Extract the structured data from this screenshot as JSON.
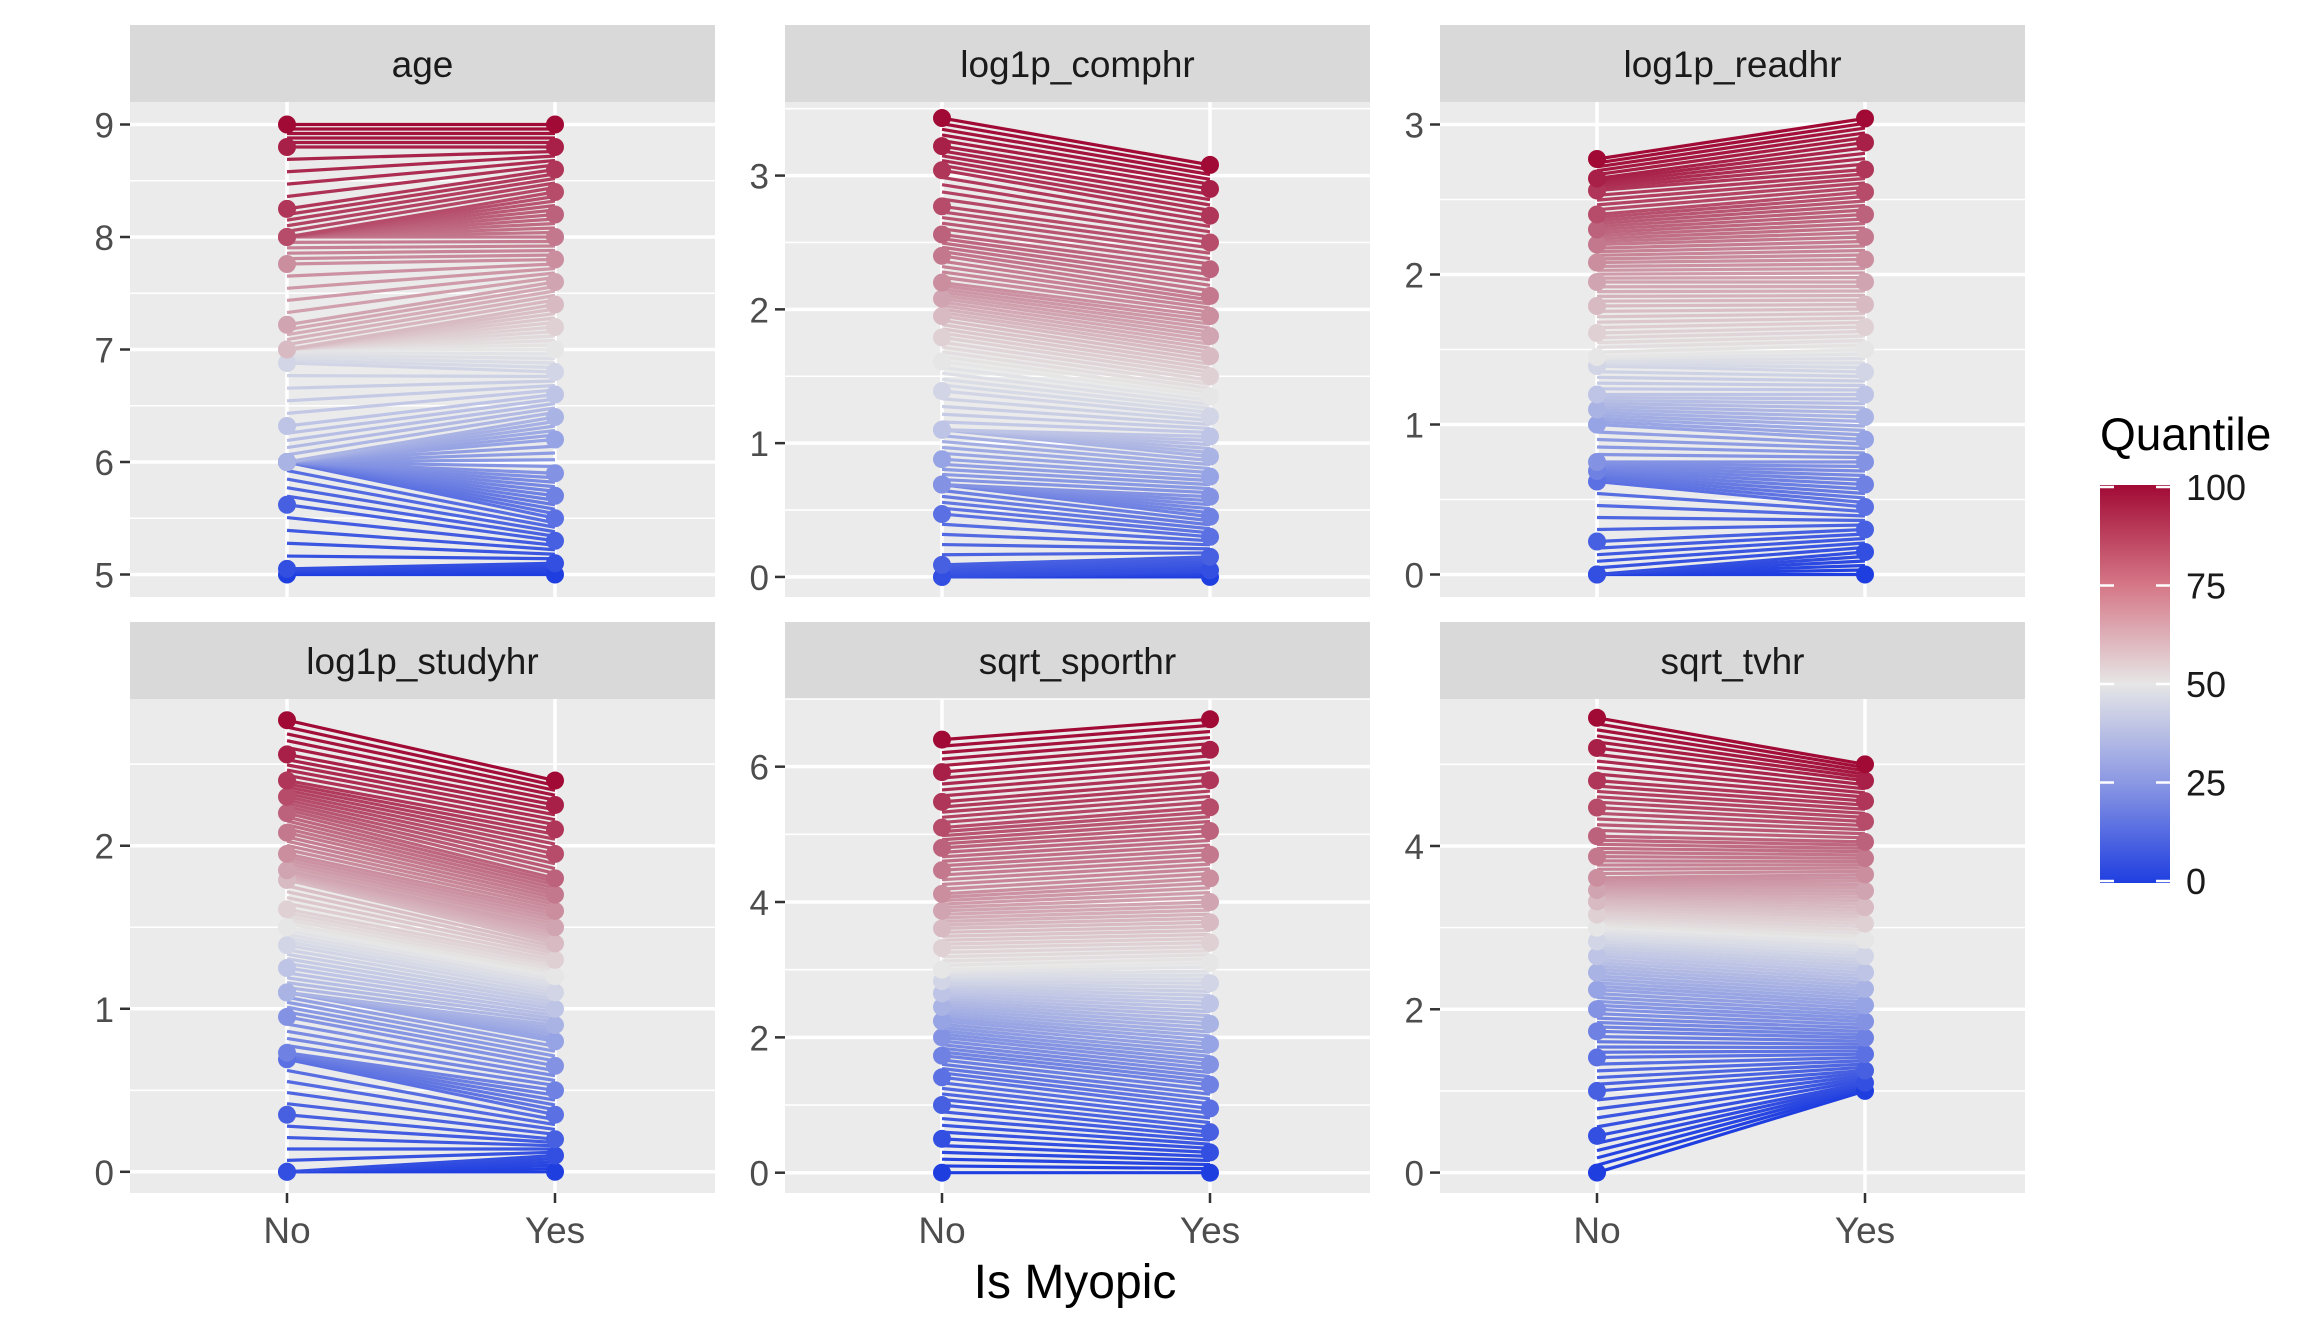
{
  "chart_data": {
    "type": "line",
    "xlabel": "Is Myopic",
    "x_categories": [
      "No",
      "Yes"
    ],
    "legend": {
      "title": "Quantile",
      "ticks": [
        "100",
        "75",
        "50",
        "25",
        "0"
      ],
      "placement": "right",
      "colors": {
        "low": "#1f3ee0",
        "mid": "#e6e6e6",
        "high": "#a10a35"
      }
    },
    "panels": [
      {
        "name": "age",
        "ylim": [
          4.8,
          9.2
        ],
        "y_ticks": [
          5,
          6,
          7,
          8,
          9
        ],
        "y_tick_labels": [
          "5",
          "6",
          "7",
          "8",
          "9"
        ],
        "quantiles": [
          0,
          5,
          10,
          15,
          20,
          25,
          30,
          35,
          40,
          45,
          50,
          55,
          60,
          65,
          70,
          75,
          80,
          85,
          90,
          95,
          100
        ],
        "no_values": [
          5.0,
          5.05,
          5.62,
          6.0,
          6.0,
          6.0,
          6.0,
          6.0,
          6.32,
          6.88,
          7.0,
          7.0,
          7.0,
          7.22,
          7.76,
          8.0,
          8.0,
          8.0,
          8.25,
          8.8,
          9.0
        ],
        "yes_values": [
          5.0,
          5.1,
          5.3,
          5.5,
          5.7,
          5.9,
          6.2,
          6.4,
          6.6,
          6.8,
          7.0,
          7.2,
          7.4,
          7.6,
          7.8,
          8.0,
          8.2,
          8.4,
          8.6,
          8.8,
          9.0
        ]
      },
      {
        "name": "log1p_comphr",
        "ylim": [
          -0.15,
          3.55
        ],
        "y_ticks": [
          0,
          1,
          2,
          3
        ],
        "y_tick_labels": [
          "0",
          "1",
          "2",
          "3"
        ],
        "quantiles": [
          0,
          5,
          10,
          15,
          20,
          25,
          30,
          35,
          40,
          45,
          50,
          55,
          60,
          65,
          70,
          75,
          80,
          85,
          90,
          95,
          100
        ],
        "no_values": [
          0.0,
          0.0,
          0.09,
          0.47,
          0.69,
          0.69,
          0.88,
          1.1,
          1.1,
          1.39,
          1.61,
          1.79,
          1.95,
          2.08,
          2.2,
          2.4,
          2.56,
          2.77,
          3.04,
          3.22,
          3.43
        ],
        "yes_values": [
          0.0,
          0.05,
          0.15,
          0.3,
          0.45,
          0.6,
          0.75,
          0.9,
          1.05,
          1.2,
          1.35,
          1.5,
          1.65,
          1.8,
          1.95,
          2.1,
          2.3,
          2.5,
          2.7,
          2.9,
          3.08
        ]
      },
      {
        "name": "log1p_readhr",
        "ylim": [
          -0.15,
          3.15
        ],
        "y_ticks": [
          0,
          1,
          2,
          3
        ],
        "y_tick_labels": [
          "0",
          "1",
          "2",
          "3"
        ],
        "quantiles": [
          0,
          5,
          10,
          15,
          20,
          25,
          30,
          35,
          40,
          45,
          50,
          55,
          60,
          65,
          70,
          75,
          80,
          85,
          90,
          95,
          100
        ],
        "no_values": [
          0.0,
          0.0,
          0.22,
          0.62,
          0.69,
          0.75,
          1.0,
          1.1,
          1.2,
          1.39,
          1.45,
          1.61,
          1.79,
          1.95,
          2.08,
          2.2,
          2.3,
          2.4,
          2.56,
          2.64,
          2.77
        ],
        "yes_values": [
          0.0,
          0.15,
          0.3,
          0.45,
          0.6,
          0.75,
          0.9,
          1.05,
          1.2,
          1.35,
          1.5,
          1.65,
          1.8,
          1.95,
          2.1,
          2.25,
          2.4,
          2.55,
          2.7,
          2.88,
          3.04
        ]
      },
      {
        "name": "log1p_studyhr",
        "ylim": [
          -0.13,
          2.9
        ],
        "y_ticks": [
          0,
          1,
          2
        ],
        "y_tick_labels": [
          "0",
          "1",
          "2"
        ],
        "quantiles": [
          0,
          5,
          10,
          15,
          20,
          25,
          30,
          35,
          40,
          45,
          50,
          55,
          60,
          65,
          70,
          75,
          80,
          85,
          90,
          95,
          100
        ],
        "no_values": [
          0.0,
          0.0,
          0.35,
          0.69,
          0.73,
          0.95,
          1.1,
          1.1,
          1.25,
          1.39,
          1.5,
          1.61,
          1.79,
          1.85,
          1.95,
          2.08,
          2.2,
          2.3,
          2.4,
          2.56,
          2.77
        ],
        "yes_values": [
          0.0,
          0.1,
          0.2,
          0.35,
          0.5,
          0.65,
          0.8,
          0.9,
          1.0,
          1.1,
          1.2,
          1.3,
          1.4,
          1.5,
          1.6,
          1.7,
          1.8,
          1.95,
          2.1,
          2.25,
          2.4
        ]
      },
      {
        "name": "sqrt_sporthr",
        "ylim": [
          -0.3,
          7.0
        ],
        "y_ticks": [
          0,
          2,
          4,
          6
        ],
        "y_tick_labels": [
          "0",
          "2",
          "4",
          "6"
        ],
        "quantiles": [
          0,
          5,
          10,
          15,
          20,
          25,
          30,
          35,
          40,
          45,
          50,
          55,
          60,
          65,
          70,
          75,
          80,
          85,
          90,
          95,
          100
        ],
        "no_values": [
          0.0,
          0.5,
          1.0,
          1.41,
          1.73,
          2.0,
          2.24,
          2.45,
          2.65,
          2.83,
          3.0,
          3.32,
          3.61,
          3.87,
          4.12,
          4.47,
          4.8,
          5.1,
          5.48,
          5.92,
          6.4
        ],
        "yes_values": [
          0.0,
          0.3,
          0.6,
          0.95,
          1.3,
          1.6,
          1.9,
          2.2,
          2.5,
          2.8,
          3.1,
          3.4,
          3.7,
          4.0,
          4.35,
          4.7,
          5.05,
          5.4,
          5.8,
          6.25,
          6.7
        ]
      },
      {
        "name": "sqrt_tvhr",
        "ylim": [
          -0.25,
          5.8
        ],
        "y_ticks": [
          0,
          2,
          4
        ],
        "y_tick_labels": [
          "0",
          "2",
          "4"
        ],
        "quantiles": [
          0,
          5,
          10,
          15,
          20,
          25,
          30,
          35,
          40,
          45,
          50,
          55,
          60,
          65,
          70,
          75,
          80,
          85,
          90,
          95,
          100
        ],
        "no_values": [
          0.0,
          0.45,
          1.0,
          1.41,
          1.73,
          2.0,
          2.24,
          2.45,
          2.65,
          2.83,
          3.0,
          3.16,
          3.32,
          3.46,
          3.61,
          3.87,
          4.12,
          4.47,
          4.8,
          5.2,
          5.57
        ],
        "yes_values": [
          1.0,
          1.1,
          1.25,
          1.45,
          1.65,
          1.85,
          2.05,
          2.25,
          2.45,
          2.65,
          2.85,
          3.05,
          3.25,
          3.45,
          3.65,
          3.85,
          4.05,
          4.3,
          4.55,
          4.8,
          5.0
        ]
      }
    ]
  }
}
